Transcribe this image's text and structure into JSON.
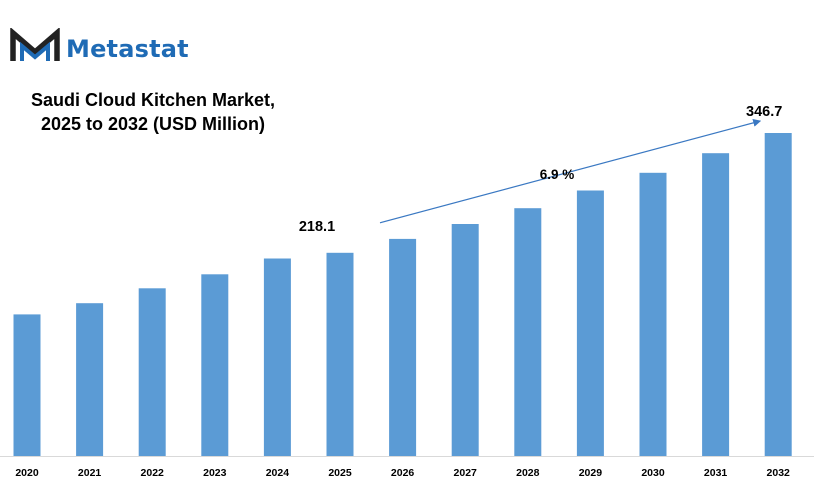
{
  "brand": {
    "name": "Metastat",
    "logo_icon": "metastat-m-logo",
    "color": "#1f6bb5"
  },
  "chart_data": {
    "type": "bar",
    "title": "Saudi Cloud Kitchen Market, 2025 to 2032 (USD Million)",
    "title_lines": [
      "Saudi Cloud Kitchen Market,",
      "2025 to 2032 (USD Million)"
    ],
    "categories": [
      "2020",
      "2021",
      "2022",
      "2023",
      "2024",
      "2025",
      "2026",
      "2027",
      "2028",
      "2029",
      "2030",
      "2031",
      "2032"
    ],
    "values": [
      152,
      164,
      180,
      195,
      212,
      218.1,
      233,
      249,
      266,
      285,
      304,
      325,
      346.7
    ],
    "data_labels": [
      {
        "category": "2025",
        "text": "218.1"
      },
      {
        "category": "2032",
        "text": "346.7"
      }
    ],
    "cagr_label": "6.9 %",
    "cagr_arrow": {
      "from": "2025",
      "to": "2032"
    },
    "bar_color": "#5b9bd5",
    "xlabel": "",
    "ylabel": "",
    "ylim": [
      0,
      346.7
    ],
    "grid": false,
    "legend": "none"
  }
}
